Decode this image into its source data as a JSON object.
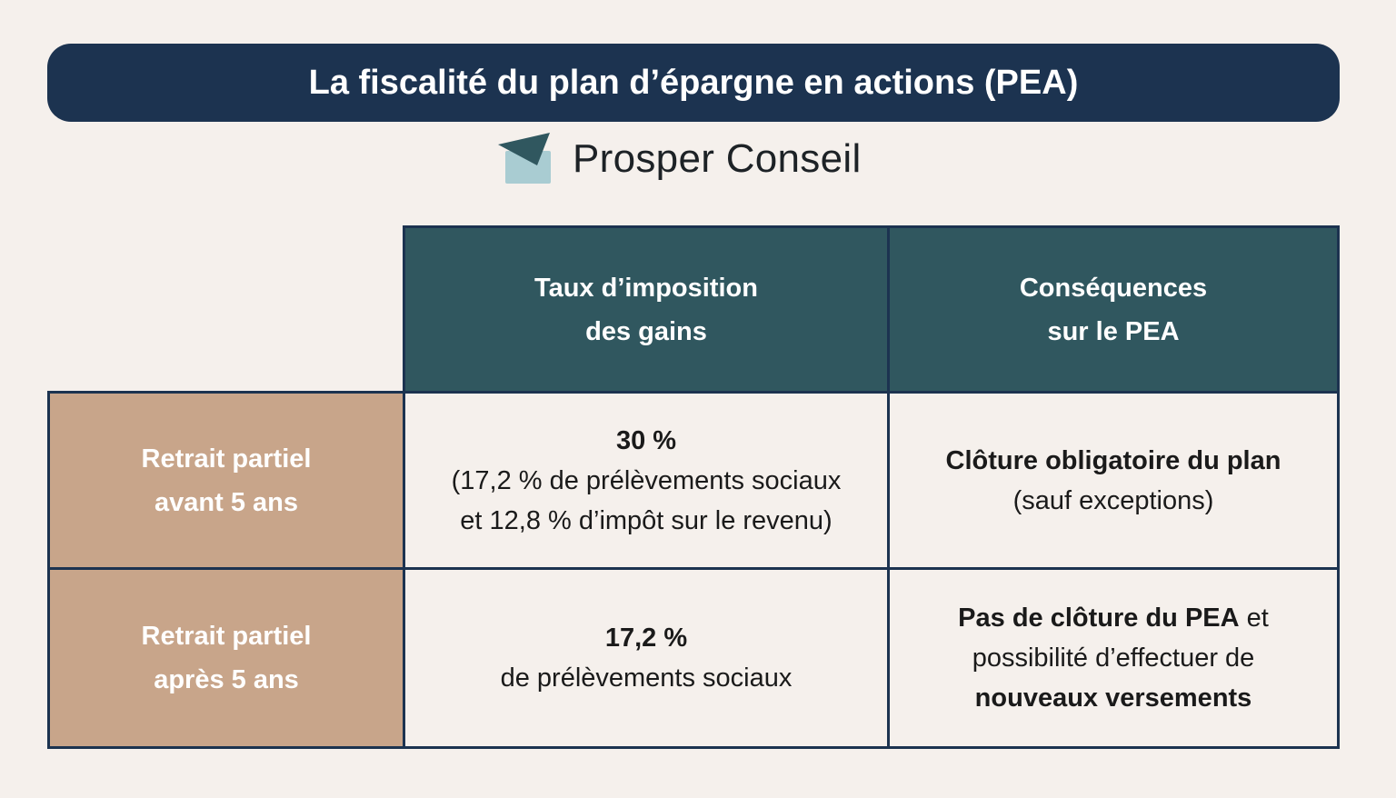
{
  "title": "La fiscalité du plan d’épargne en actions (PEA)",
  "brand": {
    "name": "Prosper Conseil",
    "logo_icon": "paper-plane-envelope-icon"
  },
  "colors": {
    "title_bg": "#1c3350",
    "header_bg": "#30575f",
    "row_header_bg": "#c8a58a",
    "background": "#f5f0ec"
  },
  "table": {
    "headers": [
      {
        "line1": "Taux d’imposition",
        "line2": "des gains"
      },
      {
        "line1": "Conséquences",
        "line2": "sur le PEA"
      }
    ],
    "rows": [
      {
        "label": {
          "line1": "Retrait partiel",
          "line2": "avant 5 ans"
        },
        "rate": {
          "bold": "30 %",
          "line2": "(17,2 % de prélèvements sociaux",
          "line3": "et 12,8 % d’impôt sur le revenu)"
        },
        "consequence": {
          "bold": "Clôture obligatoire du plan",
          "line2": "(sauf exceptions)"
        }
      },
      {
        "label": {
          "line1": "Retrait partiel",
          "line2": "après 5 ans"
        },
        "rate": {
          "bold": "17,2 %",
          "line2": "de prélèvements sociaux"
        },
        "consequence": {
          "bold1": "Pas de clôture du PEA",
          "rest1": " et",
          "line2": "possibilité d’effectuer de",
          "bold3": "nouveaux versements"
        }
      }
    ]
  }
}
